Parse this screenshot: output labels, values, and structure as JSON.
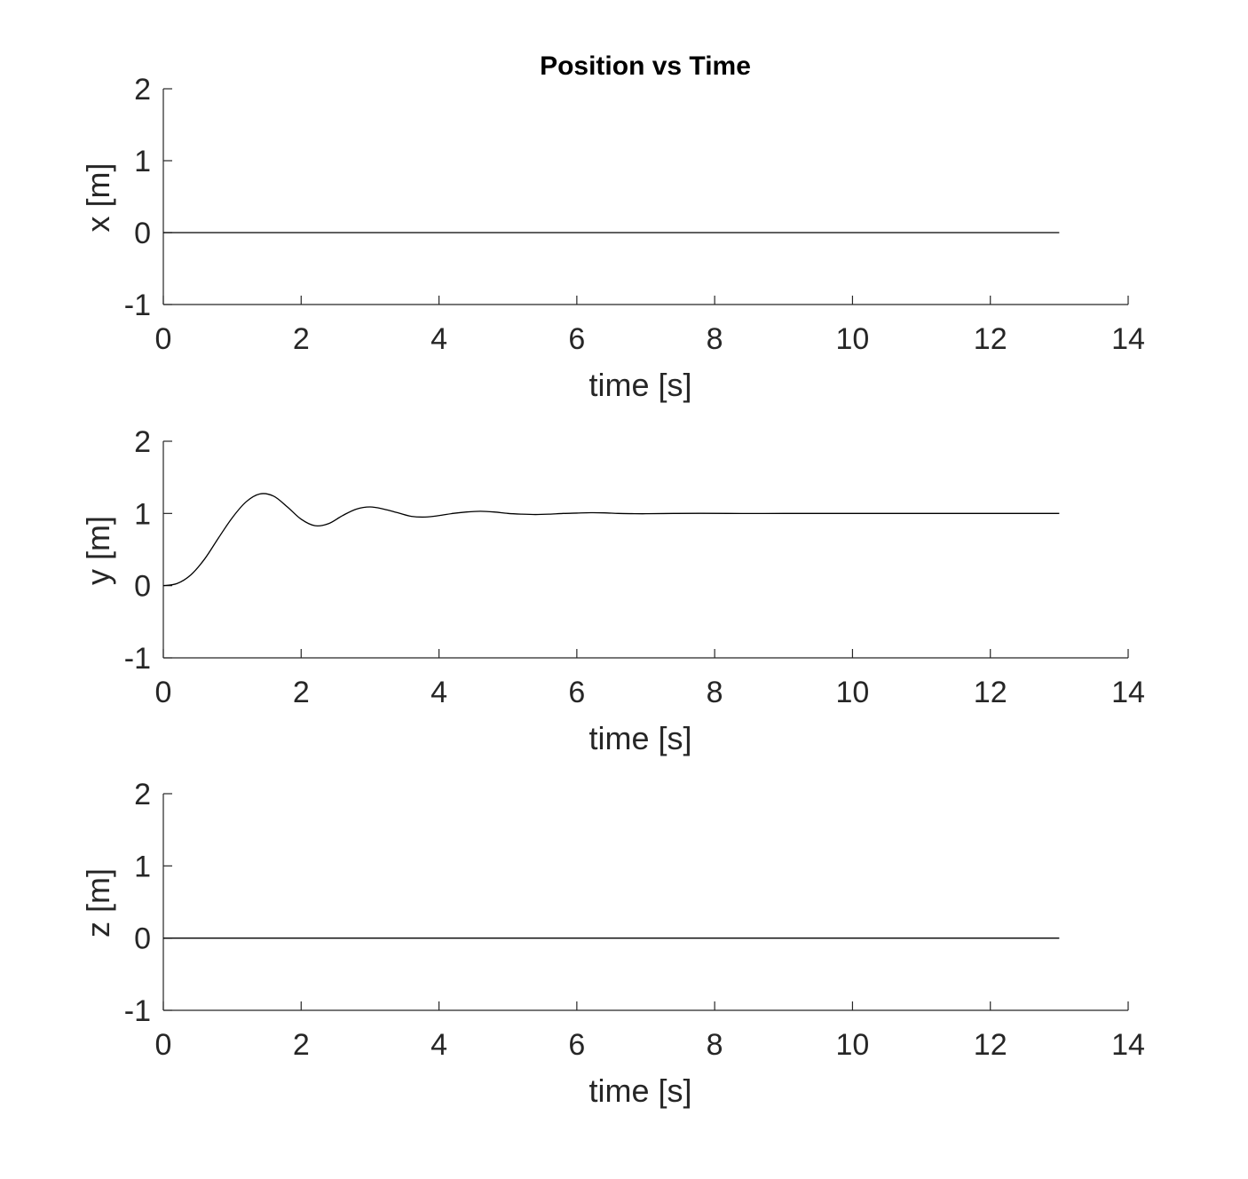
{
  "figure": {
    "title": "Position vs Time"
  },
  "chart_data": [
    {
      "type": "line",
      "title": "Position vs Time",
      "xlabel": "time [s]",
      "ylabel": "x [m]",
      "xlim": [
        0,
        14
      ],
      "ylim": [
        -1,
        2
      ],
      "xticks": [
        "0",
        "2",
        "4",
        "6",
        "8",
        "10",
        "12",
        "14"
      ],
      "yticks": [
        "-1",
        "0",
        "1",
        "2"
      ],
      "grid": false,
      "series": [
        {
          "x": [
            0,
            13
          ],
          "y": [
            0,
            0
          ]
        }
      ]
    },
    {
      "type": "line",
      "title": "",
      "xlabel": "time [s]",
      "ylabel": "y [m]",
      "xlim": [
        0,
        14
      ],
      "ylim": [
        -1,
        2
      ],
      "xticks": [
        "0",
        "2",
        "4",
        "6",
        "8",
        "10",
        "12",
        "14"
      ],
      "yticks": [
        "-1",
        "0",
        "1",
        "2"
      ],
      "grid": false,
      "series": [
        {
          "x": [
            0,
            0.2,
            0.4,
            0.6,
            0.8,
            1.0,
            1.2,
            1.4,
            1.6,
            1.8,
            2.0,
            2.2,
            2.4,
            2.6,
            2.8,
            3.0,
            3.2,
            3.4,
            3.6,
            3.8,
            4.0,
            4.2,
            4.4,
            4.6,
            4.8,
            5.0,
            5.2,
            5.4,
            5.6,
            5.8,
            6.0,
            6.2,
            6.4,
            6.6,
            6.8,
            7.0,
            7.4,
            7.8,
            8.2,
            8.6,
            9.0,
            10.0,
            11.0,
            12.0,
            13.0
          ],
          "y": [
            0,
            0.03,
            0.15,
            0.37,
            0.66,
            0.94,
            1.16,
            1.27,
            1.24,
            1.09,
            0.92,
            0.83,
            0.86,
            0.97,
            1.06,
            1.09,
            1.06,
            1.01,
            0.96,
            0.95,
            0.97,
            1.0,
            1.02,
            1.03,
            1.02,
            1.0,
            0.99,
            0.985,
            0.99,
            1.0,
            1.005,
            1.01,
            1.008,
            1.0,
            0.997,
            0.996,
            1.0,
            1.002,
            1.0,
            0.999,
            1.0,
            1.0,
            1.0,
            1.0,
            1.0
          ]
        }
      ]
    },
    {
      "type": "line",
      "title": "",
      "xlabel": "time [s]",
      "ylabel": "z [m]",
      "xlim": [
        0,
        14
      ],
      "ylim": [
        -1,
        2
      ],
      "xticks": [
        "0",
        "2",
        "4",
        "6",
        "8",
        "10",
        "12",
        "14"
      ],
      "yticks": [
        "-1",
        "0",
        "1",
        "2"
      ],
      "grid": false,
      "series": [
        {
          "x": [
            0,
            13
          ],
          "y": [
            0,
            0
          ]
        }
      ]
    }
  ]
}
